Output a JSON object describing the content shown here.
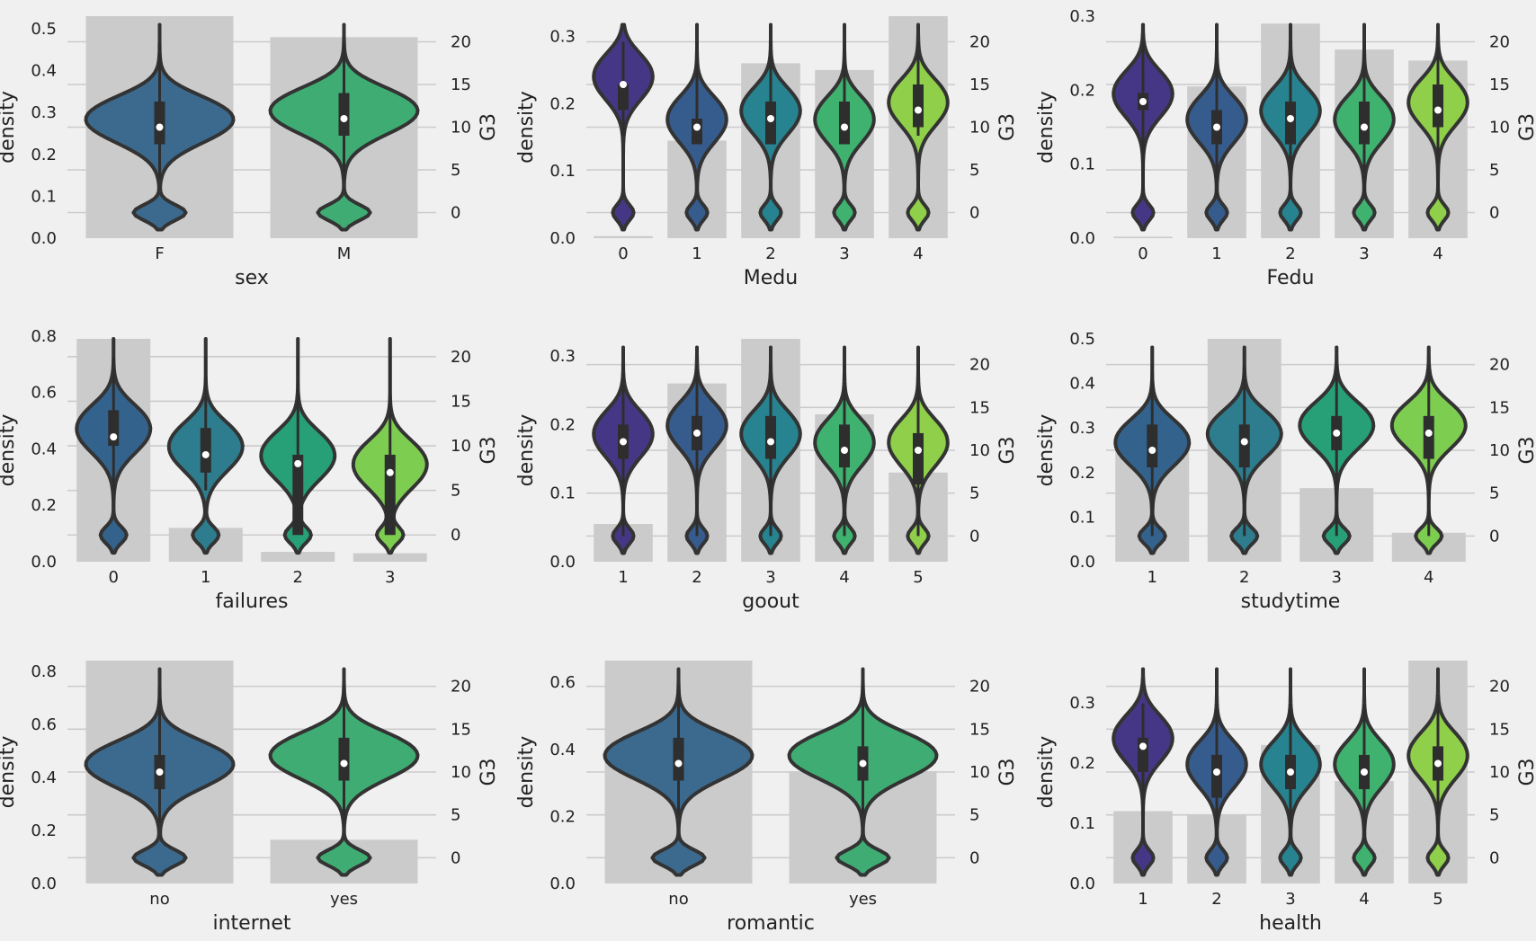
{
  "palette": {
    "background": "#f0f0f0",
    "bar": "#cbcbcb",
    "grid": "#cbcbcb",
    "outline": "#333333",
    "box": "#2e2e2e",
    "median": "#ffffff",
    "viridis2": [
      "#3b6a8e",
      "#3fad73"
    ],
    "viridis4": [
      "#33638d",
      "#2e7d8e",
      "#27a077",
      "#7dcd50"
    ],
    "viridis5": [
      "#463686",
      "#365c8d",
      "#26838f",
      "#3fb26f",
      "#8fcf4a"
    ]
  },
  "chart_data": [
    {
      "type": "violin",
      "xlabel": "sex",
      "ylabel_left": "density",
      "ylabel_right": "G3",
      "categories": [
        "F",
        "M"
      ],
      "density_values": [
        0.53,
        0.48
      ],
      "left_ylim": [
        0,
        0.53
      ],
      "left_ticks": [
        "0.0",
        "0.1",
        "0.2",
        "0.3",
        "0.4",
        "0.5"
      ],
      "right_ylim": [
        -3,
        23
      ],
      "right_ticks": [
        "0",
        "5",
        "10",
        "15",
        "20"
      ],
      "g3_median": [
        10,
        11
      ],
      "g3_q1": [
        8,
        9
      ],
      "g3_q3": [
        13,
        14
      ],
      "g3_whisker": [
        4,
        20
      ]
    },
    {
      "type": "violin",
      "xlabel": "Medu",
      "ylabel_left": "density",
      "ylabel_right": "G3",
      "categories": [
        "0",
        "1",
        "2",
        "3",
        "4"
      ],
      "density_values": [
        0.003,
        0.145,
        0.26,
        0.25,
        0.33
      ],
      "left_ylim": [
        0,
        0.33
      ],
      "left_ticks": [
        "0.0",
        "0.1",
        "0.2",
        "0.3"
      ],
      "right_ylim": [
        -3,
        23
      ],
      "right_ticks": [
        "0",
        "5",
        "10",
        "15",
        "20"
      ],
      "g3_median": [
        15,
        10,
        11,
        10,
        12
      ],
      "g3_q1": [
        12,
        8,
        8,
        8,
        10
      ],
      "g3_q3": [
        15,
        11,
        13,
        13,
        15
      ],
      "g3_whisker": [
        9,
        20
      ]
    },
    {
      "type": "violin",
      "xlabel": "Fedu",
      "ylabel_left": "density",
      "ylabel_right": "G3",
      "categories": [
        "0",
        "1",
        "2",
        "3",
        "4"
      ],
      "density_values": [
        0.002,
        0.205,
        0.29,
        0.255,
        0.24
      ],
      "left_ylim": [
        0,
        0.3
      ],
      "left_ticks": [
        "0.0",
        "0.1",
        "0.2",
        "0.3"
      ],
      "right_ylim": [
        -3,
        23
      ],
      "right_ticks": [
        "0",
        "5",
        "10",
        "15",
        "20"
      ],
      "g3_median": [
        13,
        10,
        11,
        10,
        12
      ],
      "g3_q1": [
        12,
        8,
        8,
        8,
        10
      ],
      "g3_q3": [
        14,
        12,
        13,
        13,
        15
      ],
      "g3_whisker": [
        2,
        20
      ]
    },
    {
      "type": "violin",
      "xlabel": "failures",
      "ylabel_left": "density",
      "ylabel_right": "G3",
      "categories": [
        "0",
        "1",
        "2",
        "3"
      ],
      "density_values": [
        0.79,
        0.12,
        0.035,
        0.03
      ],
      "left_ylim": [
        0,
        0.79
      ],
      "left_ticks": [
        "0.0",
        "0.2",
        "0.4",
        "0.6",
        "0.8"
      ],
      "right_ylim": [
        -3,
        22
      ],
      "right_ticks": [
        "0",
        "5",
        "10",
        "15",
        "20"
      ],
      "g3_median": [
        11,
        9,
        8,
        7
      ],
      "g3_q1": [
        10,
        7,
        0,
        0
      ],
      "g3_q3": [
        14,
        12,
        9,
        9
      ],
      "g3_whisker": [
        5,
        20
      ]
    },
    {
      "type": "violin",
      "xlabel": "goout",
      "ylabel_left": "density",
      "ylabel_right": "G3",
      "categories": [
        "1",
        "2",
        "3",
        "4",
        "5"
      ],
      "density_values": [
        0.055,
        0.26,
        0.325,
        0.215,
        0.13
      ],
      "left_ylim": [
        0,
        0.325
      ],
      "left_ticks": [
        "0.0",
        "0.1",
        "0.2",
        "0.3"
      ],
      "right_ylim": [
        -3,
        23
      ],
      "right_ticks": [
        "0",
        "5",
        "10",
        "15",
        "20"
      ],
      "g3_median": [
        11,
        12,
        11,
        10,
        10
      ],
      "g3_q1": [
        9,
        10,
        9,
        8,
        6
      ],
      "g3_q3": [
        13,
        14,
        14,
        13,
        12
      ],
      "g3_whisker": [
        0,
        20
      ]
    },
    {
      "type": "violin",
      "xlabel": "studytime",
      "ylabel_left": "density",
      "ylabel_right": "G3",
      "categories": [
        "1",
        "2",
        "3",
        "4"
      ],
      "density_values": [
        0.27,
        0.5,
        0.165,
        0.065
      ],
      "left_ylim": [
        0,
        0.5
      ],
      "left_ticks": [
        "0.0",
        "0.1",
        "0.2",
        "0.3",
        "0.4",
        "0.5"
      ],
      "right_ylim": [
        -3,
        23
      ],
      "right_ticks": [
        "0",
        "5",
        "10",
        "15",
        "20"
      ],
      "g3_median": [
        10,
        11,
        12,
        12
      ],
      "g3_q1": [
        8,
        8,
        10,
        9
      ],
      "g3_q3": [
        13,
        13,
        14,
        14
      ],
      "g3_whisker": [
        0,
        20
      ]
    },
    {
      "type": "violin",
      "xlabel": "internet",
      "ylabel_left": "density",
      "ylabel_right": "G3",
      "categories": [
        "no",
        "yes"
      ],
      "density_values": [
        0.84,
        0.165
      ],
      "left_ylim": [
        0,
        0.84
      ],
      "left_ticks": [
        "0.0",
        "0.2",
        "0.4",
        "0.6",
        "0.8"
      ],
      "right_ylim": [
        -3,
        23
      ],
      "right_ticks": [
        "0",
        "5",
        "10",
        "15",
        "20"
      ],
      "g3_median": [
        10,
        11
      ],
      "g3_q1": [
        8,
        9
      ],
      "g3_q3": [
        12,
        14
      ],
      "g3_whisker": [
        4,
        20
      ]
    },
    {
      "type": "violin",
      "xlabel": "romantic",
      "ylabel_left": "density",
      "ylabel_right": "G3",
      "categories": [
        "no",
        "yes"
      ],
      "density_values": [
        0.665,
        0.335
      ],
      "left_ylim": [
        0,
        0.665
      ],
      "left_ticks": [
        "0.0",
        "0.2",
        "0.4",
        "0.6"
      ],
      "right_ylim": [
        -3,
        23
      ],
      "right_ticks": [
        "0",
        "5",
        "10",
        "15",
        "20"
      ],
      "g3_median": [
        11,
        11
      ],
      "g3_q1": [
        9,
        9
      ],
      "g3_q3": [
        14,
        13
      ],
      "g3_whisker": [
        5,
        20
      ]
    },
    {
      "type": "violin",
      "xlabel": "health",
      "ylabel_left": "density",
      "ylabel_right": "G3",
      "categories": [
        "1",
        "2",
        "3",
        "4",
        "5"
      ],
      "density_values": [
        0.12,
        0.115,
        0.23,
        0.17,
        0.37
      ],
      "left_ylim": [
        0,
        0.37
      ],
      "left_ticks": [
        "0.0",
        "0.1",
        "0.2",
        "0.3"
      ],
      "right_ylim": [
        -3,
        23
      ],
      "right_ticks": [
        "0",
        "5",
        "10",
        "15",
        "20"
      ],
      "g3_median": [
        13,
        10,
        10,
        10,
        11
      ],
      "g3_q1": [
        10,
        7,
        8,
        8,
        9
      ],
      "g3_q3": [
        14,
        12,
        12,
        12,
        13
      ],
      "g3_whisker": [
        2,
        18
      ]
    }
  ]
}
